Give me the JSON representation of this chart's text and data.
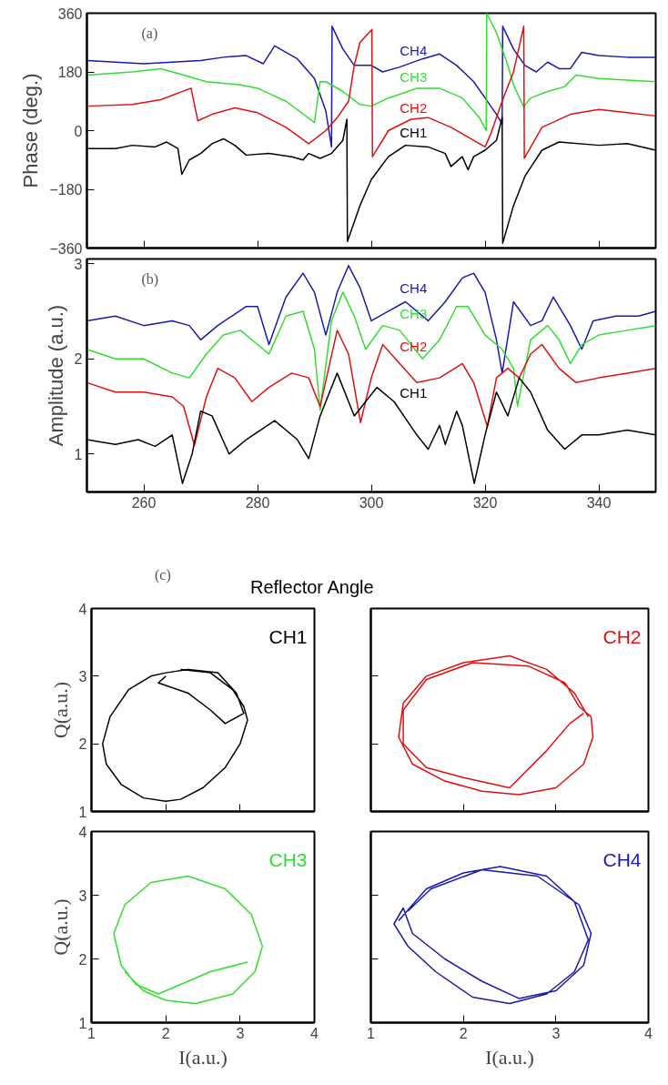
{
  "chart_data": [
    {
      "type": "line",
      "ylabel": "Phase (deg.)",
      "annotations": [
        "(a)"
      ],
      "xlim": [
        250,
        350
      ],
      "ylim": [
        -360,
        360
      ],
      "xticks": [
        260,
        280,
        300,
        320,
        340
      ],
      "yticks": [
        -360,
        -180,
        0,
        180,
        360
      ],
      "tick_labels": "y",
      "grid": false,
      "series": [
        {
          "name": "CH4",
          "color": "#1a1aaa",
          "x": [
            250,
            255,
            260,
            265,
            270,
            274,
            278,
            281,
            283,
            287,
            290,
            292,
            293,
            293.1,
            295,
            297,
            300,
            302,
            305,
            309,
            312,
            315,
            318,
            320,
            322,
            323,
            323.1,
            325,
            327,
            329,
            331,
            333,
            335,
            337,
            340,
            345,
            350
          ],
          "values": [
            215,
            210,
            205,
            210,
            215,
            225,
            230,
            205,
            260,
            220,
            160,
            60,
            -50,
            320,
            250,
            200,
            200,
            180,
            195,
            220,
            235,
            200,
            150,
            100,
            50,
            20,
            320,
            250,
            200,
            180,
            210,
            190,
            190,
            240,
            230,
            225,
            225
          ]
        },
        {
          "name": "CH3",
          "color": "#33dd33",
          "x": [
            250,
            258,
            263,
            267,
            271,
            277,
            280,
            285,
            290,
            291,
            292,
            295,
            298,
            300,
            303,
            308,
            312,
            316,
            319,
            320.2,
            320.3,
            322,
            324,
            325,
            326.8,
            328,
            331,
            334,
            336,
            340,
            345,
            350
          ],
          "values": [
            170,
            180,
            190,
            170,
            150,
            140,
            130,
            90,
            25,
            150,
            150,
            120,
            80,
            75,
            100,
            130,
            130,
            100,
            40,
            0,
            360,
            300,
            200,
            140,
            73,
            100,
            120,
            135,
            170,
            160,
            155,
            150
          ]
        },
        {
          "name": "CH2",
          "color": "#dd1111",
          "x": [
            250,
            258,
            263,
            268.3,
            269.5,
            272,
            276,
            280,
            285,
            289,
            292,
            294,
            296,
            297,
            298,
            300.1,
            300.2,
            303,
            307,
            310,
            314,
            317,
            320,
            321,
            323,
            325,
            326.8,
            326.9,
            330,
            335,
            340,
            345,
            350
          ],
          "values": [
            75,
            80,
            95,
            130,
            30,
            50,
            70,
            55,
            10,
            -40,
            0,
            40,
            90,
            200,
            270,
            310,
            -80,
            0,
            35,
            40,
            10,
            -20,
            -50,
            -10,
            90,
            180,
            320,
            -85,
            10,
            50,
            65,
            55,
            45
          ]
        },
        {
          "name": "CH1",
          "color": "#000000",
          "x": [
            250,
            255,
            258,
            262,
            264,
            266,
            266.7,
            268,
            270,
            272,
            274,
            276,
            278,
            282,
            286,
            288,
            289,
            291,
            293,
            295,
            295.7,
            295.8,
            298,
            300,
            303,
            306,
            310,
            313,
            314,
            316,
            317,
            318,
            320,
            322,
            323,
            323.1,
            325,
            327,
            330,
            333,
            340,
            345,
            350
          ],
          "values": [
            -55,
            -55,
            -45,
            -50,
            -35,
            -55,
            -134,
            -90,
            -70,
            -40,
            -25,
            -45,
            -75,
            -70,
            -80,
            -90,
            -70,
            -85,
            -70,
            -30,
            35,
            -340,
            -230,
            -150,
            -80,
            -45,
            -50,
            -70,
            -110,
            -80,
            -120,
            -80,
            -60,
            -30,
            40,
            -345,
            -230,
            -140,
            -60,
            -35,
            -45,
            -40,
            -60
          ]
        }
      ]
    },
    {
      "type": "line",
      "ylabel": "Amplitude (a.u.)",
      "annotations": [
        "(b)"
      ],
      "xlim": [
        250,
        350
      ],
      "ylim": [
        0.6,
        3.05
      ],
      "xticks": [
        260,
        280,
        300,
        320,
        340
      ],
      "yticks": [
        1,
        2,
        3
      ],
      "grid": false,
      "series": [
        {
          "name": "CH4",
          "color": "#1a1aaa",
          "x": [
            250,
            255,
            260,
            265,
            268,
            270,
            273,
            278,
            280,
            282,
            285,
            288,
            290,
            292,
            294,
            296,
            298,
            300,
            303,
            306,
            310,
            313,
            316,
            318,
            320,
            322,
            323,
            325,
            328,
            330,
            332,
            335,
            337,
            339,
            343,
            347,
            350
          ],
          "values": [
            2.4,
            2.45,
            2.35,
            2.4,
            2.35,
            2.2,
            2.35,
            2.55,
            2.55,
            2.15,
            2.65,
            2.9,
            2.7,
            2.25,
            2.7,
            2.98,
            2.75,
            2.4,
            2.5,
            2.6,
            2.4,
            2.6,
            2.85,
            2.9,
            2.7,
            2.2,
            1.85,
            2.6,
            2.35,
            2.4,
            2.65,
            2.35,
            2.1,
            2.4,
            2.45,
            2.45,
            2.5
          ]
        },
        {
          "name": "CH3",
          "color": "#33dd33",
          "x": [
            250,
            255,
            260,
            265,
            268,
            271,
            274,
            277,
            280,
            282,
            285,
            288,
            290,
            291,
            293,
            295,
            297,
            299,
            302,
            305,
            309,
            312,
            315,
            317,
            320,
            323,
            325,
            325.7,
            328,
            331,
            333,
            335,
            337,
            340,
            345,
            350
          ],
          "values": [
            2.1,
            2.0,
            2.0,
            1.85,
            1.8,
            2.05,
            2.25,
            2.3,
            2.15,
            2.05,
            2.45,
            2.5,
            2.1,
            1.46,
            2.4,
            2.7,
            2.45,
            2.1,
            2.35,
            2.3,
            2.0,
            2.2,
            2.55,
            2.55,
            2.25,
            2.1,
            1.9,
            1.5,
            2.2,
            2.35,
            2.2,
            1.95,
            2.15,
            2.25,
            2.3,
            2.35
          ]
        },
        {
          "name": "CH2",
          "color": "#dd1111",
          "x": [
            250,
            255,
            260,
            265,
            267,
            268.9,
            271,
            273,
            276,
            279,
            282,
            286,
            289,
            291,
            294,
            296,
            298.1,
            300,
            302,
            305,
            308,
            312,
            316,
            318,
            320.4,
            322,
            324,
            326,
            328,
            330,
            333,
            336,
            340,
            345,
            350
          ],
          "values": [
            1.75,
            1.65,
            1.65,
            1.6,
            1.5,
            1.09,
            1.6,
            1.9,
            1.8,
            1.55,
            1.7,
            1.85,
            1.8,
            1.5,
            2.3,
            2.05,
            1.33,
            1.8,
            2.15,
            1.95,
            1.75,
            1.8,
            1.95,
            1.75,
            1.29,
            1.8,
            1.9,
            1.8,
            2.05,
            2.15,
            1.9,
            1.75,
            1.8,
            1.85,
            1.9
          ]
        },
        {
          "name": "CH1",
          "color": "#000000",
          "x": [
            250,
            255,
            259,
            262,
            265,
            266.8,
            268.5,
            270,
            272,
            275,
            278,
            283,
            287,
            289,
            291,
            294,
            297,
            299,
            301,
            304,
            308,
            310,
            312,
            313,
            315,
            316,
            318.1,
            320,
            322,
            324,
            326,
            328,
            331,
            334,
            337,
            340,
            345,
            350
          ],
          "values": [
            1.15,
            1.1,
            1.15,
            1.08,
            1.2,
            0.69,
            1.0,
            1.45,
            1.4,
            1.0,
            1.15,
            1.35,
            1.15,
            0.95,
            1.4,
            1.85,
            1.4,
            1.55,
            1.7,
            1.55,
            1.2,
            1.05,
            1.3,
            1.1,
            1.45,
            1.3,
            0.69,
            1.2,
            1.65,
            1.4,
            1.8,
            1.65,
            1.25,
            1.05,
            1.2,
            1.2,
            1.25,
            1.2
          ]
        }
      ]
    },
    {
      "type": "line",
      "title": "Reflector Angle",
      "annotations": [
        "(c)"
      ],
      "ylabel": "Q(a.u.)",
      "xlim": [
        1,
        4
      ],
      "ylim": [
        1,
        4
      ],
      "xticks": [
        1,
        2,
        3,
        4
      ],
      "yticks": [
        1,
        2,
        3,
        4
      ],
      "tick_labels": "y",
      "grid": false,
      "series": [
        {
          "name": "CH1",
          "color": "#000000",
          "x": [
            2.2,
            2.6,
            2.9,
            3.05,
            3.1,
            3.0,
            2.8,
            2.5,
            2.2,
            2.0,
            1.7,
            1.4,
            1.2,
            1.15,
            1.25,
            1.5,
            1.8,
            2.0,
            2.3,
            2.7,
            2.95,
            3.05,
            2.8,
            2.6,
            2.3,
            1.9,
            2.0
          ],
          "values": [
            3.1,
            3.05,
            2.8,
            2.55,
            2.35,
            2.0,
            1.65,
            1.35,
            1.18,
            1.15,
            1.2,
            1.4,
            1.7,
            2.0,
            2.4,
            2.8,
            3.0,
            3.05,
            3.1,
            3.05,
            2.75,
            2.45,
            2.3,
            2.5,
            2.75,
            2.9,
            3.0
          ]
        }
      ]
    },
    {
      "type": "line",
      "xlim": [
        1,
        4
      ],
      "ylim": [
        1,
        4
      ],
      "xticks": [
        1,
        2,
        3,
        4
      ],
      "yticks": [
        1,
        2,
        3,
        4
      ],
      "tick_labels": false,
      "grid": false,
      "series": [
        {
          "name": "CH2",
          "color": "#e01010",
          "x": [
            3.35,
            3.2,
            2.9,
            2.5,
            2.0,
            1.6,
            1.35,
            1.3,
            1.45,
            1.8,
            2.2,
            2.6,
            3.0,
            3.3,
            3.4,
            3.38,
            3.25,
            3.1,
            2.7,
            2.1,
            1.6,
            1.35,
            1.35,
            1.6,
            2.0,
            2.5,
            2.9,
            3.15,
            3.3
          ],
          "values": [
            2.4,
            2.75,
            3.1,
            3.3,
            3.2,
            3.0,
            2.6,
            2.1,
            1.7,
            1.45,
            1.3,
            1.25,
            1.35,
            1.7,
            2.1,
            2.4,
            2.55,
            2.9,
            3.15,
            3.2,
            2.95,
            2.5,
            2.0,
            1.65,
            1.5,
            1.35,
            1.9,
            2.3,
            2.45
          ]
        }
      ]
    },
    {
      "type": "line",
      "xlabel": "I(a.u.)",
      "ylabel": "Q(a.u.)",
      "xlim": [
        1,
        4
      ],
      "ylim": [
        1,
        4
      ],
      "xticks": [
        1,
        2,
        3,
        4
      ],
      "yticks": [
        1,
        2,
        3,
        4
      ],
      "grid": false,
      "series": [
        {
          "name": "CH3",
          "color": "#33dd33",
          "x": [
            3.1,
            2.6,
            2.2,
            1.9,
            1.6,
            1.4,
            1.3,
            1.45,
            1.8,
            2.3,
            2.8,
            3.15,
            3.3,
            3.2,
            2.9,
            2.4,
            2.0,
            1.7,
            1.45
          ],
          "values": [
            1.95,
            1.8,
            1.6,
            1.45,
            1.6,
            1.9,
            2.4,
            2.85,
            3.2,
            3.3,
            3.1,
            2.7,
            2.2,
            1.8,
            1.45,
            1.3,
            1.35,
            1.5,
            1.8
          ]
        }
      ]
    },
    {
      "type": "line",
      "xlabel": "I(a.u.)",
      "xlim": [
        1,
        4
      ],
      "ylim": [
        1,
        4
      ],
      "xticks": [
        1,
        2,
        3,
        4
      ],
      "yticks": [
        1,
        2,
        3,
        4
      ],
      "tick_labels": "x",
      "grid": false,
      "series": [
        {
          "name": "CH4",
          "color": "#1a1aaa",
          "x": [
            1.3,
            1.6,
            2.0,
            2.4,
            2.9,
            3.2,
            3.35,
            3.2,
            2.9,
            2.5,
            2.1,
            1.7,
            1.4,
            1.25,
            1.35,
            1.45,
            1.8,
            2.2,
            2.6,
            3.0,
            3.3,
            3.38,
            3.25,
            2.8,
            2.2,
            1.65,
            1.4
          ],
          "values": [
            2.6,
            3.1,
            3.35,
            3.45,
            3.3,
            2.9,
            2.3,
            1.8,
            1.45,
            1.3,
            1.4,
            1.8,
            2.2,
            2.55,
            2.8,
            2.4,
            2.0,
            1.65,
            1.38,
            1.5,
            1.9,
            2.4,
            2.85,
            3.3,
            3.4,
            3.1,
            2.75
          ]
        }
      ]
    }
  ]
}
